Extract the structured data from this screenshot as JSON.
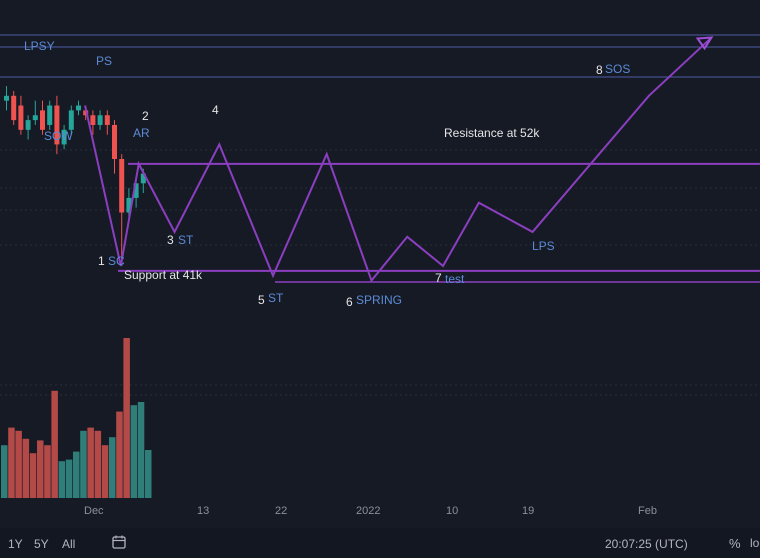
{
  "colors": {
    "background": "#161a25",
    "grid": "#2a2e39",
    "level_line": "#4f5ca8",
    "path": "#8b3fc0",
    "path_end": "#9c4fd6",
    "candle_up": "#26a69a",
    "candle_down": "#ef5350",
    "vol_up": "#2f7e7a",
    "vol_down": "#b44a48",
    "label_blue": "#5b8bd6",
    "label_white": "#e6e6e6",
    "axis_text": "#8a8f9c"
  },
  "chart_data": {
    "type": "line",
    "title": "",
    "x_ticks": [
      "Dec",
      "13",
      "22",
      "2022",
      "10",
      "19",
      "Feb"
    ],
    "wyckoff_path": [
      {
        "label": "PS",
        "x": "Nov 30",
        "y": 58.0
      },
      {
        "label": "1 SC",
        "x": "Dec 4",
        "y": 41.5
      },
      {
        "label": "2 AR",
        "x": "Dec 6",
        "y": 52.0
      },
      {
        "label": "3 ST",
        "x": "Dec 10",
        "y": 45.0
      },
      {
        "label": "4",
        "x": "Dec 15",
        "y": 54.0
      },
      {
        "label": "5 ST",
        "x": "Dec 21",
        "y": 40.5
      },
      {
        "label": "",
        "x": "Dec 27",
        "y": 53.0
      },
      {
        "label": "6 SPRING",
        "x": "Jan 1",
        "y": 40.0
      },
      {
        "label": "",
        "x": "Jan 5",
        "y": 44.5
      },
      {
        "label": "7 test",
        "x": "Jan 9",
        "y": 41.5
      },
      {
        "label": "",
        "x": "Jan 13",
        "y": 48.0
      },
      {
        "label": "LPS",
        "x": "Jan 19",
        "y": 45.0
      },
      {
        "label": "8 SOS",
        "x": "Feb 1",
        "y": 59.0
      },
      {
        "label": "",
        "x": "Feb 8",
        "y": 65.0
      }
    ],
    "levels": [
      {
        "label": "Resistance at 52k",
        "value": 52
      },
      {
        "label": "Support at 41k",
        "value": 41
      }
    ],
    "candles": [
      {
        "o": 58.5,
        "h": 60.0,
        "l": 57.5,
        "c": 59.0
      },
      {
        "o": 59.0,
        "h": 59.5,
        "l": 56.0,
        "c": 56.5
      },
      {
        "o": 58.0,
        "h": 59.0,
        "l": 55.0,
        "c": 55.5
      },
      {
        "o": 55.5,
        "h": 57.0,
        "l": 54.5,
        "c": 56.5
      },
      {
        "o": 56.5,
        "h": 58.5,
        "l": 56.0,
        "c": 57.0
      },
      {
        "o": 57.5,
        "h": 58.5,
        "l": 55.0,
        "c": 55.5
      },
      {
        "o": 56.0,
        "h": 58.5,
        "l": 55.5,
        "c": 58.0
      },
      {
        "o": 58.0,
        "h": 59.0,
        "l": 53.0,
        "c": 54.0
      },
      {
        "o": 54.0,
        "h": 56.0,
        "l": 53.5,
        "c": 55.5
      },
      {
        "o": 55.5,
        "h": 58.0,
        "l": 55.0,
        "c": 57.5
      },
      {
        "o": 57.5,
        "h": 58.5,
        "l": 57.0,
        "c": 58.0
      },
      {
        "o": 57.5,
        "h": 58.0,
        "l": 56.5,
        "c": 57.0
      },
      {
        "o": 57.0,
        "h": 57.5,
        "l": 55.0,
        "c": 56.0
      },
      {
        "o": 56.0,
        "h": 57.5,
        "l": 55.5,
        "c": 57.0
      },
      {
        "o": 57.0,
        "h": 57.5,
        "l": 55.0,
        "c": 56.0
      },
      {
        "o": 56.0,
        "h": 56.5,
        "l": 51.0,
        "c": 52.5
      },
      {
        "o": 52.5,
        "h": 53.0,
        "l": 41.5,
        "c": 47.0
      },
      {
        "o": 47.0,
        "h": 49.5,
        "l": 46.0,
        "c": 48.5
      },
      {
        "o": 48.5,
        "h": 50.5,
        "l": 47.5,
        "c": 50.0
      },
      {
        "o": 50.0,
        "h": 51.5,
        "l": 49.0,
        "c": 51.0
      }
    ],
    "volume": [
      {
        "v": 0.33,
        "up": true
      },
      {
        "v": 0.44,
        "up": false
      },
      {
        "v": 0.42,
        "up": false
      },
      {
        "v": 0.37,
        "up": false
      },
      {
        "v": 0.28,
        "up": false
      },
      {
        "v": 0.36,
        "up": false
      },
      {
        "v": 0.33,
        "up": false
      },
      {
        "v": 0.67,
        "up": false
      },
      {
        "v": 0.23,
        "up": true
      },
      {
        "v": 0.24,
        "up": true
      },
      {
        "v": 0.29,
        "up": true
      },
      {
        "v": 0.42,
        "up": true
      },
      {
        "v": 0.44,
        "up": false
      },
      {
        "v": 0.42,
        "up": false
      },
      {
        "v": 0.33,
        "up": false
      },
      {
        "v": 0.38,
        "up": true
      },
      {
        "v": 0.54,
        "up": false
      },
      {
        "v": 1.0,
        "up": false
      },
      {
        "v": 0.58,
        "up": true
      },
      {
        "v": 0.6,
        "up": true
      },
      {
        "v": 0.3,
        "up": true
      }
    ],
    "ylim": [
      38,
      67
    ],
    "grid": true
  },
  "annotations": [
    {
      "text": "LPSY",
      "color": "label_blue"
    },
    {
      "text": "PS",
      "color": "label_blue"
    },
    {
      "text": "SOW",
      "color": "label_blue"
    },
    {
      "text": "2",
      "color": "label_white"
    },
    {
      "text": "AR",
      "color": "label_blue"
    },
    {
      "text": "4",
      "color": "label_white"
    },
    {
      "text": "Resistance at 52k",
      "color": "label_white"
    },
    {
      "text": "3",
      "color": "label_white"
    },
    {
      "text": "ST",
      "color": "label_blue"
    },
    {
      "text": "1",
      "color": "label_white"
    },
    {
      "text": "SC",
      "color": "label_blue"
    },
    {
      "text": "Support at 41k",
      "color": "label_white"
    },
    {
      "text": "5",
      "color": "label_white"
    },
    {
      "text": "ST",
      "color": "label_blue"
    },
    {
      "text": "6",
      "color": "label_white"
    },
    {
      "text": "SPRING",
      "color": "label_blue"
    },
    {
      "text": "7",
      "color": "label_white"
    },
    {
      "text": "test",
      "color": "label_blue"
    },
    {
      "text": "LPS",
      "color": "label_blue"
    },
    {
      "text": "8",
      "color": "label_white"
    },
    {
      "text": "SOS",
      "color": "label_blue"
    }
  ],
  "toolbar": {
    "timeframes": [
      "1Y",
      "5Y",
      "All"
    ],
    "clock": "20:07:25 (UTC)",
    "percent": "%",
    "log": "lo"
  }
}
